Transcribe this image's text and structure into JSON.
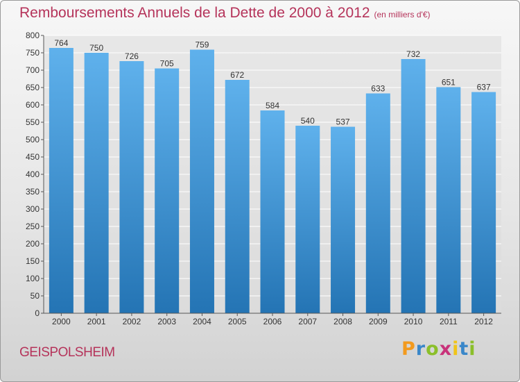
{
  "title": "Remboursements Annuels de la Dette de 2000 à 2012",
  "unit": "(en milliers d'€)",
  "city": "GEISPOLSHEIM",
  "logo": {
    "text": "Proxiti",
    "letters": [
      {
        "ch": "P",
        "color": "#f29a1e"
      },
      {
        "ch": "r",
        "color": "#3a87c9"
      },
      {
        "ch": "o",
        "color": "#8bbf2a"
      },
      {
        "ch": "x",
        "color": "#c8327a"
      },
      {
        "ch": "i",
        "color": "#f0c419"
      },
      {
        "ch": "t",
        "color": "#3a87c9"
      },
      {
        "ch": "i",
        "color": "#8bbf2a"
      }
    ]
  },
  "colors": {
    "bar_top": "#5fb1ec",
    "bar_bottom": "#2474b4",
    "title": "#b5335a",
    "grid": "#ffffff",
    "axis": "#555555"
  },
  "chart_data": {
    "type": "bar",
    "categories": [
      "2000",
      "2001",
      "2002",
      "2003",
      "2004",
      "2005",
      "2006",
      "2007",
      "2008",
      "2009",
      "2010",
      "2011",
      "2012"
    ],
    "values": [
      764,
      750,
      726,
      705,
      759,
      672,
      584,
      540,
      537,
      633,
      732,
      651,
      637
    ],
    "ylim": [
      0,
      800
    ],
    "yticks": [
      0,
      50,
      100,
      150,
      200,
      250,
      300,
      350,
      400,
      450,
      500,
      550,
      600,
      650,
      700,
      750,
      800
    ],
    "grid": true,
    "xlabel": "",
    "ylabel": ""
  }
}
